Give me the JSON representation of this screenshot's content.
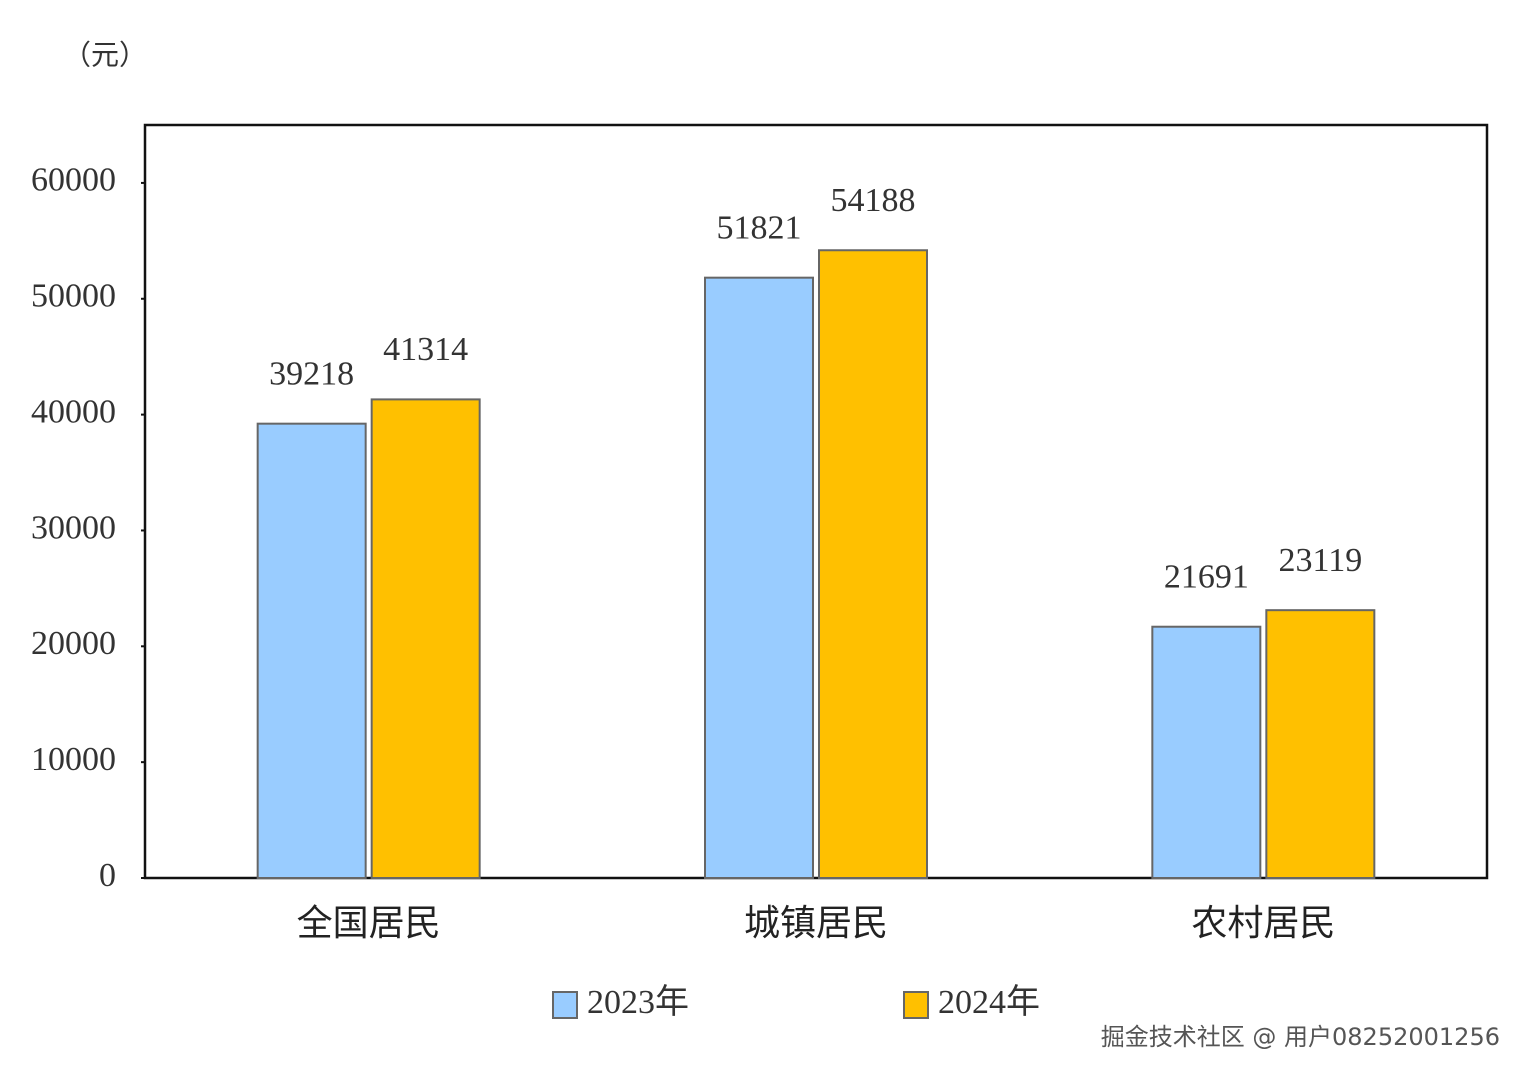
{
  "chart_data": {
    "type": "bar",
    "y_label": "（元）",
    "categories": [
      "全国居民",
      "城镇居民",
      "农村居民"
    ],
    "series": [
      {
        "name": "2023年",
        "color": "#99ccff",
        "values": [
          39218,
          51821,
          21691
        ]
      },
      {
        "name": "2024年",
        "color": "#ffc000",
        "values": [
          41314,
          54188,
          23119
        ]
      }
    ],
    "ylim": [
      0,
      65000
    ],
    "yticks": [
      0,
      10000,
      20000,
      30000,
      40000,
      50000,
      60000
    ],
    "legend": "bottom"
  },
  "watermark": "掘金技术社区 @ 用户08252001256"
}
